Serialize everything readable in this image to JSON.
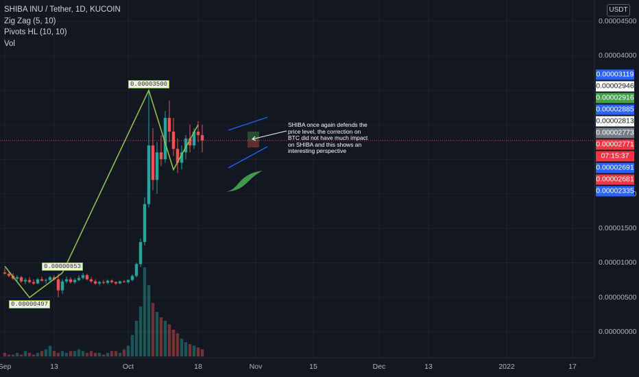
{
  "legend": {
    "symbol": "SHIBA INU / Tether, 1D, KUCOIN",
    "zigzag": "Zig Zag (5, 10)",
    "pivots": "Pivots HL (10, 10)",
    "vol": "Vol"
  },
  "currency_button": "USDT",
  "y_axis": {
    "ticks": [
      {
        "value": 4.5e-05,
        "label": "0.00004500"
      },
      {
        "value": 4e-05,
        "label": "0.00004000"
      },
      {
        "value": 2e-05,
        "label": "0.00002000"
      },
      {
        "value": 1.5e-05,
        "label": "0.00001500"
      },
      {
        "value": 1e-05,
        "label": "0.00001000"
      },
      {
        "value": 5e-06,
        "label": "0.00000500"
      },
      {
        "value": 0.0,
        "label": "0.00000000"
      }
    ]
  },
  "price_labels": [
    {
      "value": 3.119e-05,
      "label": "0.00003119",
      "bg": "#2962ff",
      "fg": "#ffffff"
    },
    {
      "value": 2.946e-05,
      "label": "0.00002946",
      "bg": "#ffffff",
      "fg": "#131722"
    },
    {
      "value": 2.916e-05,
      "label": "0.00002916",
      "bg": "#43a047",
      "fg": "#ffffff"
    },
    {
      "value": 2.885e-05,
      "label": "0.00002885",
      "bg": "#2962ff",
      "fg": "#ffffff"
    },
    {
      "value": 2.813e-05,
      "label": "0.00002813",
      "bg": "#ffffff",
      "fg": "#131722"
    },
    {
      "value": 2.773e-05,
      "label": "0.00002773",
      "bg": "#787b86",
      "fg": "#ffffff"
    },
    {
      "value": 2.771e-05,
      "label": "0.00002771",
      "bg": "#f23645",
      "fg": "#ffffff",
      "sub": "07:15:37"
    },
    {
      "value": 2.691e-05,
      "label": "0.00002691",
      "bg": "#2962ff",
      "fg": "#ffffff"
    },
    {
      "value": 2.681e-05,
      "label": "0.00002681",
      "bg": "#f23645",
      "fg": "#ffffff"
    },
    {
      "value": 2.335e-05,
      "label": "0.00002335",
      "bg": "#2962ff",
      "fg": "#ffffff"
    }
  ],
  "x_axis": {
    "ticks": [
      {
        "label": "Sep",
        "day": 0
      },
      {
        "label": "13",
        "day": 12
      },
      {
        "label": "Oct",
        "day": 30
      },
      {
        "label": "18",
        "day": 47
      },
      {
        "label": "Nov",
        "day": 61
      },
      {
        "label": "15",
        "day": 75
      },
      {
        "label": "Dec",
        "day": 91
      },
      {
        "label": "13",
        "day": 103
      },
      {
        "label": "2022",
        "day": 122
      },
      {
        "label": "17",
        "day": 138
      }
    ]
  },
  "zigzag_labels": [
    {
      "text": "0.00003500",
      "day": 35,
      "value": 3.5e-05,
      "side": "above"
    },
    {
      "text": "0.00000853",
      "day": 14,
      "value": 8.53e-06,
      "side": "above"
    },
    {
      "text": "0.00000497",
      "day": 6,
      "value": 4.97e-06,
      "side": "below"
    }
  ],
  "annotation": "SHIBA once again defends the price level, the correction on BTC did not have much impact on SHIBA and this shows an interesting perspective",
  "chart_data": {
    "type": "candlestick",
    "title": "SHIBA INU / Tether, 1D, KUCOIN",
    "ylim": [
      0.0,
      4.7e-05
    ],
    "last_price": 2.771e-05,
    "x_start_date": "2021-08-23",
    "candles": [
      {
        "o": 8.6e-06,
        "h": 9.2e-06,
        "l": 8.3e-06,
        "c": 8.4e-06
      },
      {
        "o": 8.4e-06,
        "h": 8.7e-06,
        "l": 7.9e-06,
        "c": 8.1e-06
      },
      {
        "o": 8.1e-06,
        "h": 8.5e-06,
        "l": 7.5e-06,
        "c": 7.7e-06
      },
      {
        "o": 7.7e-06,
        "h": 8.2e-06,
        "l": 7.2e-06,
        "c": 7.9e-06
      },
      {
        "o": 7.9e-06,
        "h": 8.1e-06,
        "l": 7.1e-06,
        "c": 7.3e-06
      },
      {
        "o": 7.3e-06,
        "h": 7.8e-06,
        "l": 6.9e-06,
        "c": 7.5e-06
      },
      {
        "o": 7.5e-06,
        "h": 7.9e-06,
        "l": 7e-06,
        "c": 7.2e-06
      },
      {
        "o": 7.2e-06,
        "h": 7.6e-06,
        "l": 6.8e-06,
        "c": 7e-06
      },
      {
        "o": 7e-06,
        "h": 7.8e-06,
        "l": 6.9e-06,
        "c": 7.6e-06
      },
      {
        "o": 7.6e-06,
        "h": 8e-06,
        "l": 7.3e-06,
        "c": 7.4e-06
      },
      {
        "o": 7.4e-06,
        "h": 7.7e-06,
        "l": 7e-06,
        "c": 7.5e-06
      },
      {
        "o": 7.5e-06,
        "h": 8.1e-06,
        "l": 7.3e-06,
        "c": 7.9e-06
      },
      {
        "o": 7.9e-06,
        "h": 8.2e-06,
        "l": 7.4e-06,
        "c": 7.6e-06
      },
      {
        "o": 7.6e-06,
        "h": 8.4e-06,
        "l": 5e-06,
        "c": 6e-06
      },
      {
        "o": 6e-06,
        "h": 7.6e-06,
        "l": 5.5e-06,
        "c": 7.3e-06
      },
      {
        "o": 7.3e-06,
        "h": 8e-06,
        "l": 7e-06,
        "c": 7.6e-06
      },
      {
        "o": 7.6e-06,
        "h": 7.9e-06,
        "l": 7e-06,
        "c": 7.2e-06
      },
      {
        "o": 7.2e-06,
        "h": 7.8e-06,
        "l": 6.9e-06,
        "c": 7.5e-06
      },
      {
        "o": 7.5e-06,
        "h": 8.2e-06,
        "l": 7.3e-06,
        "c": 7.8e-06
      },
      {
        "o": 7.8e-06,
        "h": 8.53e-06,
        "l": 7.6e-06,
        "c": 8.2e-06
      },
      {
        "o": 8.2e-06,
        "h": 8.4e-06,
        "l": 7.5e-06,
        "c": 7.6e-06
      },
      {
        "o": 7.6e-06,
        "h": 7.9e-06,
        "l": 7.1e-06,
        "c": 7.3e-06
      },
      {
        "o": 7.3e-06,
        "h": 7.6e-06,
        "l": 6.8e-06,
        "c": 7e-06
      },
      {
        "o": 7e-06,
        "h": 7.4e-06,
        "l": 6.7e-06,
        "c": 7.2e-06
      },
      {
        "o": 7.2e-06,
        "h": 7.5e-06,
        "l": 6.9e-06,
        "c": 7.1e-06
      },
      {
        "o": 7.1e-06,
        "h": 7.6e-06,
        "l": 6.9e-06,
        "c": 7.4e-06
      },
      {
        "o": 7.4e-06,
        "h": 7.6e-06,
        "l": 7e-06,
        "c": 7.2e-06
      },
      {
        "o": 7.2e-06,
        "h": 7.3e-06,
        "l": 6.8e-06,
        "c": 7e-06
      },
      {
        "o": 7e-06,
        "h": 7.4e-06,
        "l": 6.9e-06,
        "c": 7.3e-06
      },
      {
        "o": 7.3e-06,
        "h": 7.5e-06,
        "l": 7.1e-06,
        "c": 7.2e-06
      },
      {
        "o": 7.2e-06,
        "h": 7.6e-06,
        "l": 7e-06,
        "c": 7.5e-06
      },
      {
        "o": 7.5e-06,
        "h": 8.3e-06,
        "l": 7.3e-06,
        "c": 8.1e-06
      },
      {
        "o": 8.1e-06,
        "h": 1e-05,
        "l": 7.9e-06,
        "c": 9.8e-06
      },
      {
        "o": 9.8e-06,
        "h": 1.35e-05,
        "l": 9.4e-06,
        "c": 1.3e-05
      },
      {
        "o": 1.3e-05,
        "h": 1.95e-05,
        "l": 1.25e-05,
        "c": 1.85e-05
      },
      {
        "o": 1.85e-05,
        "h": 3.5e-05,
        "l": 1.8e-05,
        "c": 2.7e-05
      },
      {
        "o": 2.7e-05,
        "h": 2.95e-05,
        "l": 2.05e-05,
        "c": 2.2e-05
      },
      {
        "o": 2.2e-05,
        "h": 2.75e-05,
        "l": 2e-05,
        "c": 2.6e-05
      },
      {
        "o": 2.6e-05,
        "h": 2.85e-05,
        "l": 2.4e-05,
        "c": 2.5e-05
      },
      {
        "o": 2.5e-05,
        "h": 3.2e-05,
        "l": 2.45e-05,
        "c": 3.1e-05
      },
      {
        "o": 3.1e-05,
        "h": 3.35e-05,
        "l": 2.75e-05,
        "c": 2.9e-05
      },
      {
        "o": 2.9e-05,
        "h": 3.1e-05,
        "l": 2.55e-05,
        "c": 2.65e-05
      },
      {
        "o": 2.65e-05,
        "h": 2.8e-05,
        "l": 2.3e-05,
        "c": 2.45e-05
      },
      {
        "o": 2.45e-05,
        "h": 2.7e-05,
        "l": 2.35e-05,
        "c": 2.6e-05
      },
      {
        "o": 2.6e-05,
        "h": 2.85e-05,
        "l": 2.5e-05,
        "c": 2.8e-05
      },
      {
        "o": 2.8e-05,
        "h": 3e-05,
        "l": 2.6e-05,
        "c": 2.7e-05
      },
      {
        "o": 2.7e-05,
        "h": 2.95e-05,
        "l": 2.65e-05,
        "c": 2.9e-05
      },
      {
        "o": 2.9e-05,
        "h": 3.05e-05,
        "l": 2.75e-05,
        "c": 2.85e-05
      },
      {
        "o": 2.85e-05,
        "h": 3e-05,
        "l": 2.6e-05,
        "c": 2.773e-05
      }
    ],
    "zigzag": [
      {
        "day": 0,
        "value": 9.5e-06
      },
      {
        "day": 6,
        "value": 4.97e-06
      },
      {
        "day": 14,
        "value": 8.53e-06
      },
      {
        "day": 35,
        "value": 3.5e-05
      },
      {
        "day": 41,
        "value": 2.35e-05
      },
      {
        "day": 47,
        "value": 3e-05
      }
    ],
    "volume": [
      2,
      1,
      1,
      2,
      1,
      3,
      2,
      1,
      2,
      3,
      4,
      6,
      3,
      2,
      3,
      2,
      3,
      3,
      4,
      3,
      2,
      3,
      2,
      2,
      1,
      2,
      3,
      3,
      2,
      4,
      6,
      12,
      20,
      28,
      50,
      40,
      30,
      25,
      22,
      20,
      18,
      15,
      13,
      10,
      8,
      7,
      6,
      5,
      4
    ]
  }
}
